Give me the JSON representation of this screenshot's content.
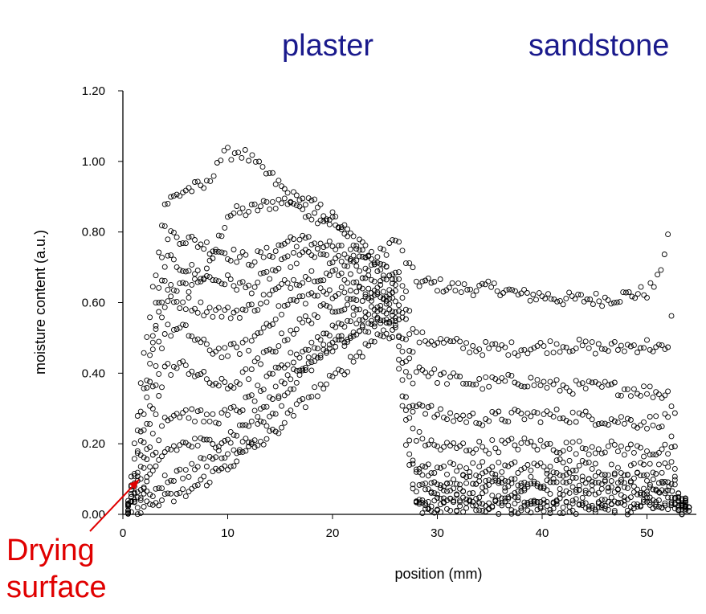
{
  "labels": {
    "plaster": "plaster",
    "sandstone": "sandstone",
    "annotation_line1": "Drying",
    "annotation_line2": "surface"
  },
  "colors": {
    "label_blue": "#1a1a8c",
    "annotation_red": "#e00000",
    "marker": "#000000"
  },
  "chart_data": {
    "type": "scatter",
    "xlabel": "position (mm)",
    "ylabel": "moisture content (a.u.)",
    "xlim": [
      0,
      55
    ],
    "ylim": [
      0,
      1.2
    ],
    "x_ticks": [
      0,
      10,
      20,
      30,
      40,
      50
    ],
    "x_tick_labels": [
      "0",
      "10",
      "20",
      "30",
      "40",
      "50"
    ],
    "y_ticks": [
      0,
      0.2,
      0.4,
      0.6,
      0.8,
      1.0,
      1.2
    ],
    "y_tick_labels": [
      "0.00",
      "0.20",
      "0.40",
      "0.60",
      "0.80",
      "1.00",
      "1.20"
    ],
    "marker": "open-circle",
    "grid": false,
    "annotations": [
      {
        "text": "Drying surface",
        "points_to": [
          1.5,
          0.1
        ]
      }
    ],
    "series": [
      {
        "points": [
          [
            0.5,
            0.02
          ],
          [
            2,
            0.35
          ],
          [
            4,
            0.65
          ],
          [
            6,
            0.64
          ],
          [
            8,
            0.68
          ],
          [
            10,
            0.85
          ],
          [
            12,
            0.86
          ],
          [
            14,
            0.88
          ],
          [
            16,
            0.89
          ],
          [
            18,
            0.85
          ],
          [
            20,
            0.83
          ],
          [
            22,
            0.76
          ],
          [
            24,
            0.72
          ],
          [
            26,
            0.78
          ],
          [
            27,
            0.72
          ],
          [
            28,
            0.66
          ],
          [
            30,
            0.65
          ],
          [
            32,
            0.64
          ],
          [
            34,
            0.64
          ],
          [
            36,
            0.64
          ],
          [
            38,
            0.62
          ],
          [
            40,
            0.62
          ],
          [
            42,
            0.61
          ],
          [
            44,
            0.61
          ],
          [
            46,
            0.61
          ],
          [
            48,
            0.62
          ],
          [
            50,
            0.63
          ],
          [
            51,
            0.66
          ],
          [
            52,
            0.79
          ],
          [
            53,
            0.05
          ],
          [
            54,
            0.02
          ]
        ]
      },
      {
        "points": [
          [
            0.5,
            0.02
          ],
          [
            2,
            0.45
          ],
          [
            4,
            0.88
          ],
          [
            6,
            0.92
          ],
          [
            8,
            0.93
          ],
          [
            9,
            1.0
          ],
          [
            10,
            1.02
          ],
          [
            11,
            1.03
          ],
          [
            12,
            1.01
          ],
          [
            13,
            0.98
          ],
          [
            14,
            0.96
          ],
          [
            16,
            0.9
          ],
          [
            18,
            0.88
          ],
          [
            20,
            0.84
          ],
          [
            22,
            0.78
          ],
          [
            24,
            0.73
          ],
          [
            26,
            0.68
          ],
          [
            27,
            0.65
          ],
          [
            28,
            0.12
          ],
          [
            30,
            0.08
          ],
          [
            34,
            0.1
          ],
          [
            38,
            0.09
          ],
          [
            42,
            0.1
          ],
          [
            46,
            0.09
          ],
          [
            50,
            0.1
          ],
          [
            53,
            0.05
          ],
          [
            54,
            0.02
          ]
        ]
      },
      {
        "points": [
          [
            0.5,
            0.02
          ],
          [
            2,
            0.3
          ],
          [
            4,
            0.8
          ],
          [
            6,
            0.78
          ],
          [
            8,
            0.76
          ],
          [
            10,
            0.74
          ],
          [
            12,
            0.72
          ],
          [
            14,
            0.74
          ],
          [
            16,
            0.78
          ],
          [
            18,
            0.77
          ],
          [
            20,
            0.76
          ],
          [
            22,
            0.72
          ],
          [
            24,
            0.7
          ],
          [
            26,
            0.68
          ],
          [
            27,
            0.6
          ],
          [
            28,
            0.5
          ],
          [
            30,
            0.49
          ],
          [
            34,
            0.47
          ],
          [
            38,
            0.47
          ],
          [
            42,
            0.48
          ],
          [
            46,
            0.47
          ],
          [
            50,
            0.48
          ],
          [
            52,
            0.46
          ],
          [
            53,
            0.04
          ],
          [
            54,
            0.02
          ]
        ]
      },
      {
        "points": [
          [
            0.5,
            0.02
          ],
          [
            2,
            0.25
          ],
          [
            4,
            0.72
          ],
          [
            6,
            0.7
          ],
          [
            8,
            0.67
          ],
          [
            10,
            0.66
          ],
          [
            12,
            0.64
          ],
          [
            14,
            0.68
          ],
          [
            16,
            0.72
          ],
          [
            18,
            0.74
          ],
          [
            20,
            0.72
          ],
          [
            22,
            0.7
          ],
          [
            24,
            0.66
          ],
          [
            26,
            0.64
          ],
          [
            27,
            0.55
          ],
          [
            28,
            0.42
          ],
          [
            30,
            0.39
          ],
          [
            34,
            0.37
          ],
          [
            38,
            0.38
          ],
          [
            42,
            0.36
          ],
          [
            46,
            0.36
          ],
          [
            50,
            0.35
          ],
          [
            52,
            0.34
          ],
          [
            53,
            0.04
          ],
          [
            54,
            0.02
          ]
        ]
      },
      {
        "points": [
          [
            0.5,
            0.02
          ],
          [
            2,
            0.2
          ],
          [
            4,
            0.6
          ],
          [
            6,
            0.6
          ],
          [
            8,
            0.58
          ],
          [
            10,
            0.57
          ],
          [
            12,
            0.58
          ],
          [
            14,
            0.62
          ],
          [
            16,
            0.66
          ],
          [
            18,
            0.68
          ],
          [
            20,
            0.68
          ],
          [
            22,
            0.67
          ],
          [
            24,
            0.64
          ],
          [
            26,
            0.62
          ],
          [
            27,
            0.5
          ],
          [
            28,
            0.32
          ],
          [
            30,
            0.28
          ],
          [
            34,
            0.27
          ],
          [
            38,
            0.28
          ],
          [
            42,
            0.28
          ],
          [
            46,
            0.27
          ],
          [
            50,
            0.26
          ],
          [
            52,
            0.27
          ],
          [
            53,
            0.04
          ],
          [
            54,
            0.02
          ]
        ]
      },
      {
        "points": [
          [
            0.5,
            0.02
          ],
          [
            2,
            0.15
          ],
          [
            4,
            0.52
          ],
          [
            6,
            0.52
          ],
          [
            8,
            0.47
          ],
          [
            10,
            0.46
          ],
          [
            12,
            0.48
          ],
          [
            14,
            0.55
          ],
          [
            16,
            0.6
          ],
          [
            18,
            0.62
          ],
          [
            20,
            0.63
          ],
          [
            22,
            0.63
          ],
          [
            24,
            0.62
          ],
          [
            26,
            0.6
          ],
          [
            27,
            0.45
          ],
          [
            28,
            0.22
          ],
          [
            30,
            0.19
          ],
          [
            34,
            0.19
          ],
          [
            38,
            0.2
          ],
          [
            42,
            0.19
          ],
          [
            46,
            0.19
          ],
          [
            50,
            0.18
          ],
          [
            52,
            0.18
          ],
          [
            53,
            0.03
          ],
          [
            54,
            0.02
          ]
        ]
      },
      {
        "points": [
          [
            0.5,
            0.02
          ],
          [
            2,
            0.12
          ],
          [
            4,
            0.41
          ],
          [
            6,
            0.42
          ],
          [
            8,
            0.38
          ],
          [
            10,
            0.36
          ],
          [
            12,
            0.4
          ],
          [
            14,
            0.46
          ],
          [
            16,
            0.52
          ],
          [
            18,
            0.56
          ],
          [
            20,
            0.59
          ],
          [
            22,
            0.6
          ],
          [
            24,
            0.6
          ],
          [
            26,
            0.58
          ],
          [
            27,
            0.4
          ],
          [
            28,
            0.14
          ],
          [
            30,
            0.13
          ],
          [
            34,
            0.13
          ],
          [
            38,
            0.13
          ],
          [
            42,
            0.14
          ],
          [
            46,
            0.13
          ],
          [
            50,
            0.13
          ],
          [
            52,
            0.14
          ],
          [
            53,
            0.03
          ],
          [
            54,
            0.02
          ]
        ]
      },
      {
        "points": [
          [
            0.5,
            0.02
          ],
          [
            2,
            0.08
          ],
          [
            4,
            0.28
          ],
          [
            6,
            0.29
          ],
          [
            8,
            0.27
          ],
          [
            10,
            0.28
          ],
          [
            12,
            0.32
          ],
          [
            14,
            0.38
          ],
          [
            16,
            0.44
          ],
          [
            18,
            0.48
          ],
          [
            20,
            0.53
          ],
          [
            22,
            0.56
          ],
          [
            24,
            0.57
          ],
          [
            26,
            0.56
          ],
          [
            27,
            0.35
          ],
          [
            28,
            0.08
          ],
          [
            30,
            0.07
          ],
          [
            34,
            0.08
          ],
          [
            38,
            0.08
          ],
          [
            42,
            0.08
          ],
          [
            46,
            0.08
          ],
          [
            50,
            0.08
          ],
          [
            52,
            0.08
          ],
          [
            53,
            0.03
          ],
          [
            54,
            0.02
          ]
        ]
      },
      {
        "points": [
          [
            0.5,
            0.02
          ],
          [
            2,
            0.06
          ],
          [
            4,
            0.18
          ],
          [
            6,
            0.2
          ],
          [
            8,
            0.2
          ],
          [
            10,
            0.22
          ],
          [
            12,
            0.26
          ],
          [
            14,
            0.32
          ],
          [
            16,
            0.4
          ],
          [
            18,
            0.44
          ],
          [
            20,
            0.48
          ],
          [
            22,
            0.52
          ],
          [
            24,
            0.56
          ],
          [
            26,
            0.55
          ],
          [
            27,
            0.3
          ],
          [
            28,
            0.05
          ],
          [
            30,
            0.05
          ],
          [
            34,
            0.05
          ],
          [
            38,
            0.05
          ],
          [
            42,
            0.05
          ],
          [
            46,
            0.05
          ],
          [
            50,
            0.05
          ],
          [
            52,
            0.05
          ],
          [
            53,
            0.02
          ],
          [
            54,
            0.02
          ]
        ]
      },
      {
        "points": [
          [
            0.5,
            0.02
          ],
          [
            2,
            0.04
          ],
          [
            4,
            0.1
          ],
          [
            6,
            0.12
          ],
          [
            8,
            0.15
          ],
          [
            10,
            0.18
          ],
          [
            12,
            0.21
          ],
          [
            14,
            0.28
          ],
          [
            16,
            0.36
          ],
          [
            18,
            0.42
          ],
          [
            20,
            0.47
          ],
          [
            22,
            0.51
          ],
          [
            24,
            0.54
          ],
          [
            26,
            0.53
          ],
          [
            27,
            0.25
          ],
          [
            28,
            0.03
          ],
          [
            30,
            0.03
          ],
          [
            34,
            0.03
          ],
          [
            38,
            0.03
          ],
          [
            42,
            0.03
          ],
          [
            46,
            0.03
          ],
          [
            50,
            0.03
          ],
          [
            52,
            0.03
          ],
          [
            53,
            0.02
          ],
          [
            54,
            0.01
          ]
        ]
      },
      {
        "points": [
          [
            0.5,
            0.02
          ],
          [
            2,
            0.02
          ],
          [
            4,
            0.04
          ],
          [
            6,
            0.06
          ],
          [
            8,
            0.1
          ],
          [
            10,
            0.14
          ],
          [
            12,
            0.18
          ],
          [
            14,
            0.22
          ],
          [
            16,
            0.28
          ],
          [
            18,
            0.34
          ],
          [
            20,
            0.38
          ],
          [
            22,
            0.44
          ],
          [
            24,
            0.5
          ],
          [
            26,
            0.52
          ],
          [
            27,
            0.2
          ],
          [
            28,
            0.02
          ],
          [
            30,
            0.02
          ],
          [
            34,
            0.02
          ],
          [
            38,
            0.02
          ],
          [
            42,
            0.02
          ],
          [
            46,
            0.02
          ],
          [
            50,
            0.02
          ],
          [
            52,
            0.02
          ],
          [
            53,
            0.01
          ],
          [
            54,
            0.01
          ]
        ]
      }
    ]
  }
}
